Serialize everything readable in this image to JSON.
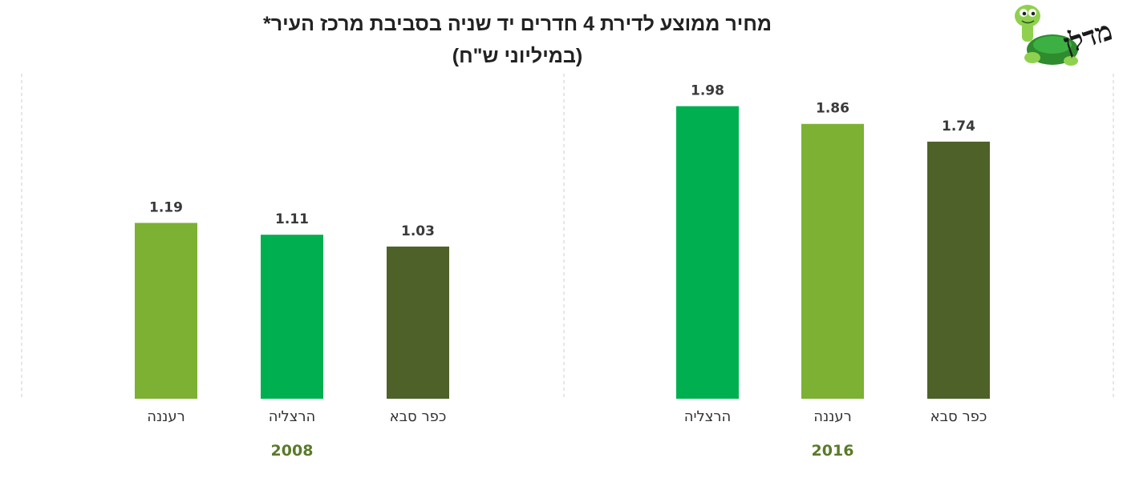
{
  "logo_text": "מדלן",
  "chart_data": {
    "type": "bar",
    "title": "מחיר ממוצע לדירת 4 חדרים יד שניה בסביבת מרכז העיר*",
    "subtitle": "(במיליוני ש\"ח)",
    "ylim": [
      0,
      2.2
    ],
    "grid": false,
    "legend": "none",
    "colors": {
      "הרצליה": "#00b050",
      "רעננה": "#7cb133",
      "כפר סבא": "#4e6128",
      "year_text": "#5a7a2a"
    },
    "groups": [
      {
        "year": "2016",
        "categories": [
          "הרצליה",
          "רעננה",
          "כפר סבא"
        ],
        "values": [
          1.98,
          1.86,
          1.74
        ],
        "labels": [
          "1.98",
          "1.86",
          "1.74"
        ]
      },
      {
        "year": "2008",
        "categories": [
          "רעננה",
          "הרצליה",
          "כפר סבא"
        ],
        "values": [
          1.19,
          1.11,
          1.03
        ],
        "labels": [
          "1.19",
          "1.11",
          "1.03"
        ]
      }
    ]
  }
}
